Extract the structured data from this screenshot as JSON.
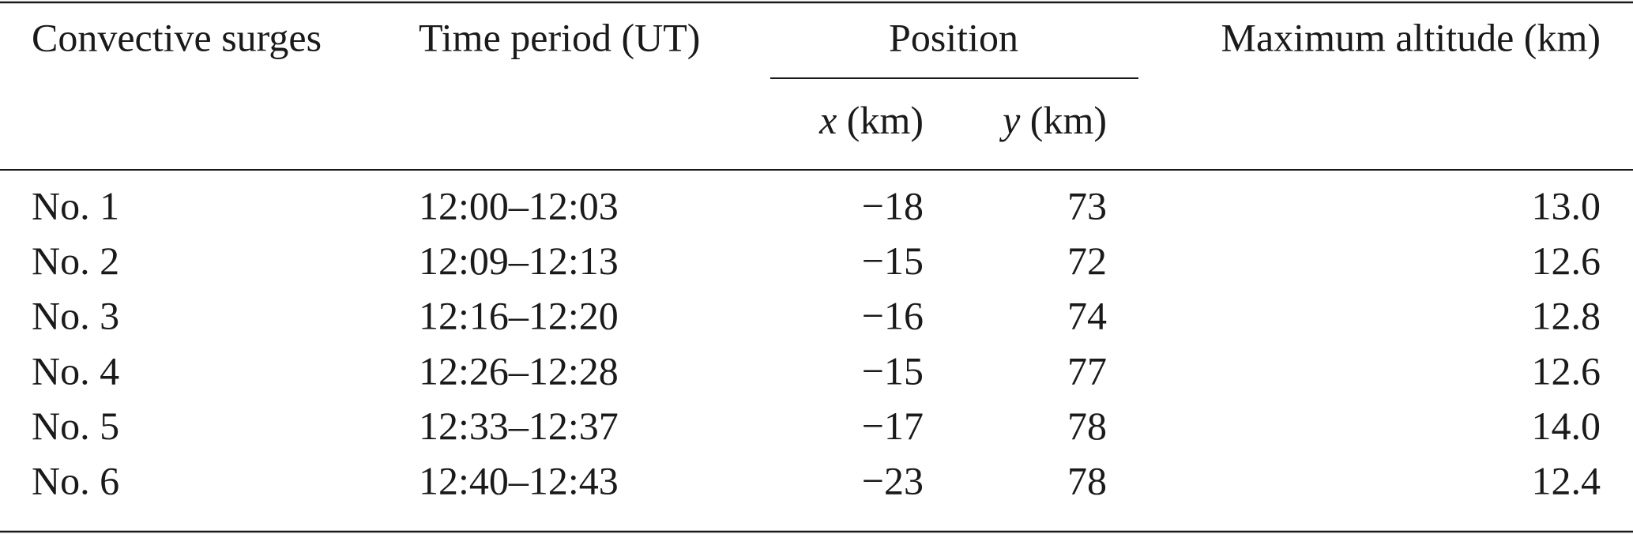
{
  "table": {
    "header": {
      "surge": "Convective surges",
      "time": "Time period (UT)",
      "position": "Position",
      "altitude": "Maximum altitude (km)",
      "x": {
        "var": "x",
        "unit": "(km)"
      },
      "y": {
        "var": "y",
        "unit": "(km)"
      }
    },
    "rows": [
      [
        "No. 1",
        "12:00–12:03",
        "−18",
        "73",
        "13.0"
      ],
      [
        "No. 2",
        "12:09–12:13",
        "−15",
        "72",
        "12.6"
      ],
      [
        "No. 3",
        "12:16–12:20",
        "−16",
        "74",
        "12.8"
      ],
      [
        "No. 4",
        "12:26–12:28",
        "−15",
        "77",
        "12.6"
      ],
      [
        "No. 5",
        "12:33–12:37",
        "−17",
        "78",
        "14.0"
      ],
      [
        "No. 6",
        "12:40–12:43",
        "−23",
        "78",
        "12.4"
      ]
    ]
  }
}
